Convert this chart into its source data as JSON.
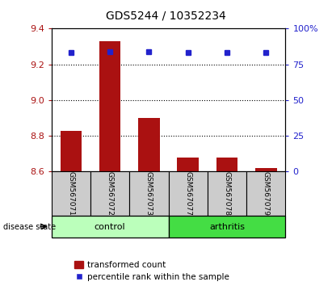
{
  "title": "GDS5244 / 10352234",
  "samples": [
    "GSM567071",
    "GSM567072",
    "GSM567073",
    "GSM567077",
    "GSM567078",
    "GSM567079"
  ],
  "bar_values": [
    8.83,
    9.33,
    8.9,
    8.68,
    8.68,
    8.62
  ],
  "percentile_values": [
    83,
    84,
    84,
    83,
    83,
    83
  ],
  "y_min": 8.6,
  "y_max": 9.4,
  "y_ticks": [
    8.6,
    8.8,
    9.0,
    9.2,
    9.4
  ],
  "right_y_ticks": [
    0,
    25,
    50,
    75,
    100
  ],
  "bar_color": "#aa1111",
  "dot_color": "#2222cc",
  "control_color": "#bbffbb",
  "arthritis_color": "#44dd44",
  "label_bg_color": "#cccccc",
  "bar_width": 0.55,
  "base_value": 8.6,
  "grid_color": "#000000"
}
